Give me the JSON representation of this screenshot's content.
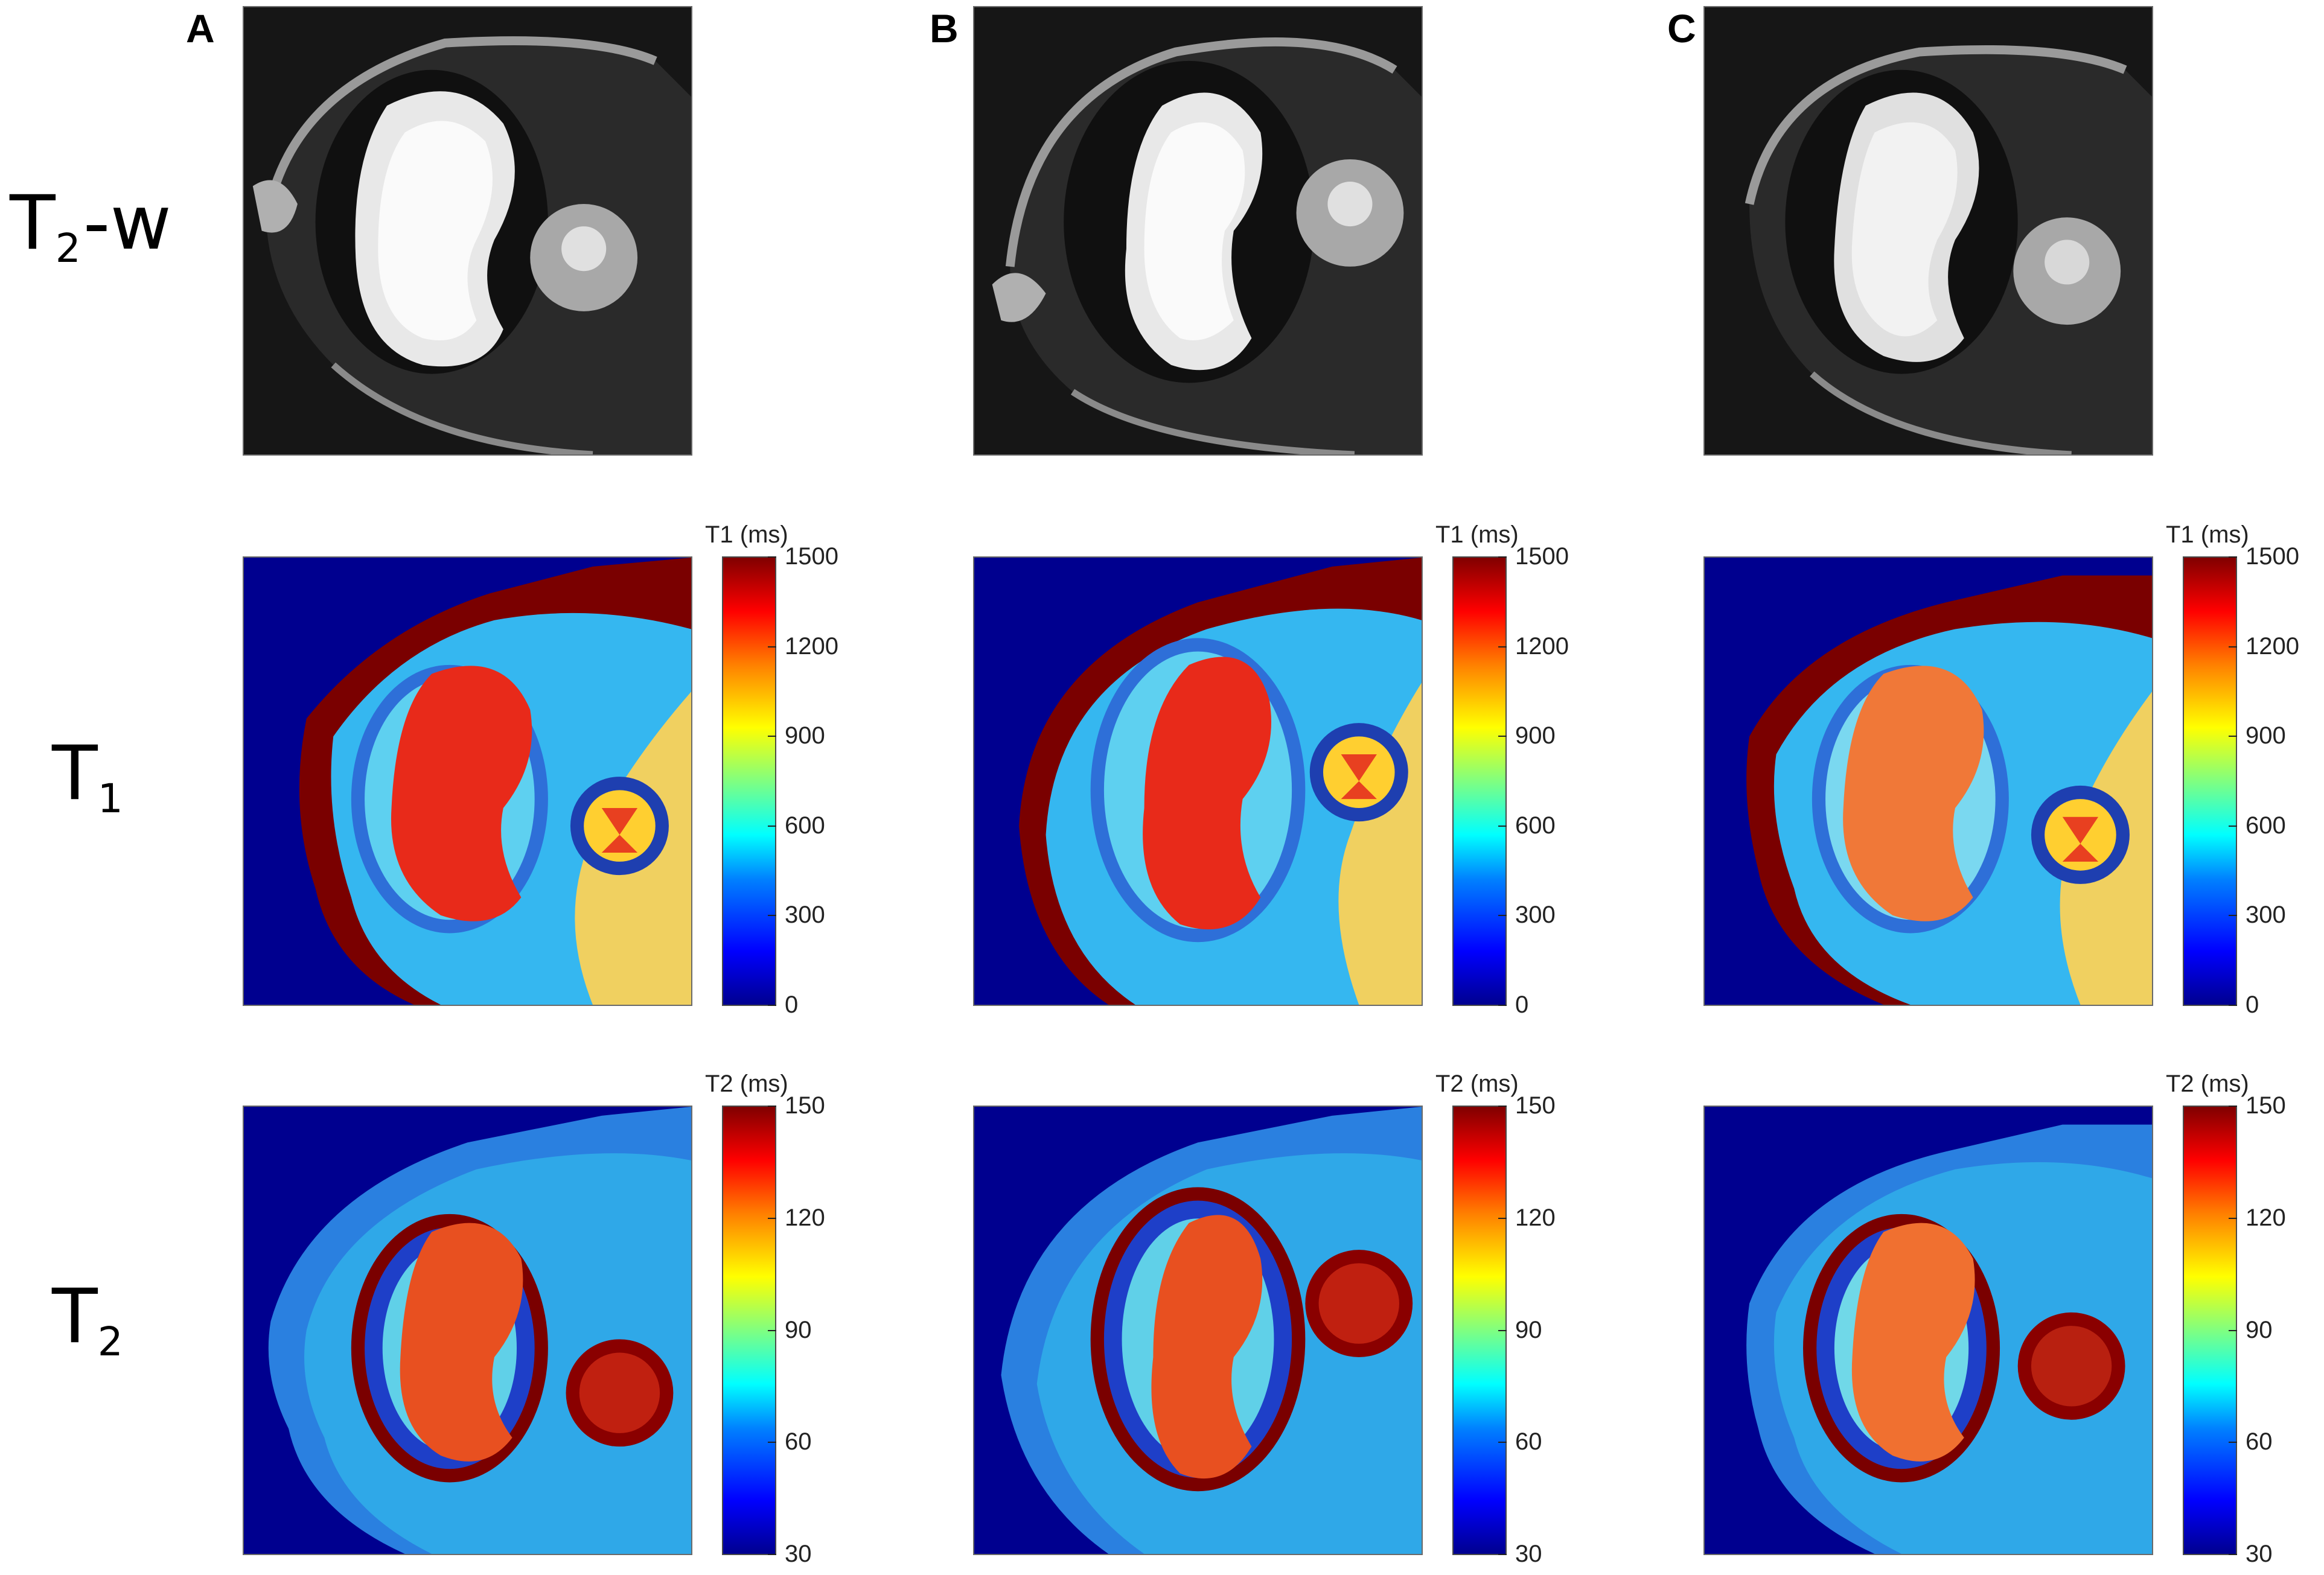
{
  "panels": [
    "A",
    "B",
    "C"
  ],
  "rows": {
    "t2w": {
      "main": "T",
      "sub": "2",
      "suffix": "-w"
    },
    "t1": {
      "main": "T",
      "sub": "1"
    },
    "t2": {
      "main": "T",
      "sub": "2"
    }
  },
  "colorbars": {
    "t1": {
      "title": "T1 (ms)",
      "ticks": [
        "1500",
        "1200",
        "900",
        "600",
        "300",
        "0"
      ]
    },
    "t2": {
      "title": "T2 (ms)",
      "ticks": [
        "150",
        "120",
        "90",
        "60",
        "30"
      ]
    }
  },
  "colors": {
    "background_map": "#00008f",
    "kidney_core": "#e82a1a",
    "capsule": "#7a0000",
    "cortex": "#35b7f0"
  }
}
